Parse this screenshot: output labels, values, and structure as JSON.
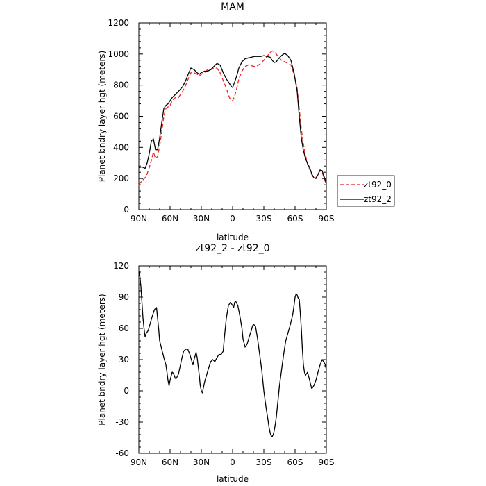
{
  "chart_data": [
    {
      "type": "line",
      "title": "MAM",
      "xlabel": "latitude",
      "ylabel": "Planet bndry layer hgt (meters)",
      "xlim": [
        90,
        -90
      ],
      "ylim": [
        0,
        1200
      ],
      "xticks": [
        90,
        60,
        30,
        0,
        -30,
        -60,
        -90
      ],
      "xtick_labels": [
        "90N",
        "60N",
        "30N",
        "0",
        "30S",
        "60S",
        "90S"
      ],
      "yticks": [
        0,
        200,
        400,
        600,
        800,
        1000,
        1200
      ],
      "ytick_labels": [
        "0",
        "200",
        "400",
        "600",
        "800",
        "1000",
        "1200"
      ],
      "legend_position": "right",
      "series": [
        {
          "name": "zt92_0",
          "color": "#e8231c",
          "dash": "dashed",
          "x": [
            90,
            87,
            84,
            82,
            80,
            78,
            76,
            74,
            72,
            70,
            68,
            66,
            64,
            62,
            60,
            58,
            55,
            52,
            48,
            45,
            42,
            40,
            37,
            34,
            32,
            30,
            27,
            24,
            21,
            18,
            15,
            12,
            9,
            6,
            3,
            1,
            0,
            -2,
            -4,
            -6,
            -9,
            -12,
            -15,
            -18,
            -21,
            -24,
            -27,
            -30,
            -33,
            -36,
            -38,
            -40,
            -42,
            -44,
            -47,
            -50,
            -53,
            -56,
            -59,
            -62,
            -64,
            -66,
            -68,
            -70,
            -72,
            -74,
            -76,
            -78,
            -80,
            -82,
            -84,
            -86,
            -88,
            -90
          ],
          "y": [
            160,
            185,
            205,
            230,
            270,
            315,
            370,
            330,
            340,
            410,
            500,
            600,
            650,
            660,
            670,
            700,
            720,
            720,
            760,
            800,
            850,
            880,
            880,
            870,
            860,
            870,
            880,
            900,
            900,
            910,
            910,
            880,
            830,
            780,
            720,
            700,
            700,
            730,
            780,
            840,
            890,
            920,
            930,
            925,
            920,
            925,
            940,
            960,
            985,
            1010,
            1020,
            1015,
            1000,
            980,
            960,
            950,
            940,
            930,
            870,
            780,
            650,
            520,
            420,
            350,
            290,
            260,
            225,
            205,
            205,
            230,
            250,
            240,
            200,
            160
          ]
        },
        {
          "name": "zt92_2",
          "color": "#000000",
          "dash": "solid",
          "x": [
            90,
            87,
            84,
            82,
            80,
            78,
            76,
            74,
            72,
            70,
            68,
            66,
            64,
            62,
            60,
            58,
            55,
            52,
            48,
            45,
            42,
            40,
            37,
            34,
            32,
            30,
            27,
            24,
            21,
            18,
            15,
            12,
            9,
            6,
            3,
            1,
            0,
            -2,
            -4,
            -6,
            -9,
            -12,
            -15,
            -18,
            -21,
            -24,
            -27,
            -30,
            -33,
            -36,
            -38,
            -40,
            -42,
            -44,
            -47,
            -50,
            -53,
            -56,
            -59,
            -62,
            -64,
            -66,
            -68,
            -70,
            -72,
            -74,
            -76,
            -78,
            -80,
            -82,
            -84,
            -86,
            -88,
            -90
          ],
          "y": [
            270,
            275,
            265,
            300,
            360,
            440,
            455,
            385,
            385,
            460,
            560,
            650,
            670,
            680,
            700,
            720,
            740,
            760,
            790,
            830,
            880,
            910,
            900,
            880,
            870,
            880,
            890,
            890,
            900,
            920,
            940,
            930,
            880,
            840,
            810,
            790,
            785,
            820,
            860,
            910,
            950,
            970,
            975,
            980,
            985,
            985,
            985,
            990,
            985,
            980,
            960,
            945,
            950,
            970,
            990,
            1005,
            990,
            960,
            880,
            760,
            600,
            460,
            380,
            330,
            295,
            270,
            230,
            205,
            200,
            225,
            255,
            250,
            210,
            170
          ]
        }
      ]
    },
    {
      "type": "line",
      "title": "zt92_2 - zt92_0",
      "xlabel": "latitude",
      "ylabel": "Planet bndry layer hgt (meters)",
      "xlim": [
        90,
        -90
      ],
      "ylim": [
        -60,
        120
      ],
      "xticks": [
        90,
        60,
        30,
        0,
        -30,
        -60,
        -90
      ],
      "xtick_labels": [
        "90N",
        "60N",
        "30N",
        "0",
        "30S",
        "60S",
        "90S"
      ],
      "yticks": [
        -60,
        -30,
        0,
        30,
        60,
        90,
        120
      ],
      "ytick_labels": [
        "-60",
        "-30",
        "0",
        "30",
        "60",
        "90",
        "120"
      ],
      "series": [
        {
          "color": "#000000",
          "dash": "solid",
          "x": [
            90,
            89,
            88,
            87,
            86,
            85,
            84,
            83,
            81,
            79,
            77,
            75,
            73,
            72,
            71,
            70,
            69,
            68,
            66,
            64,
            63,
            62,
            61,
            60,
            58,
            57,
            56,
            55,
            54,
            52,
            50,
            49,
            47,
            45,
            43,
            41,
            39,
            38,
            37,
            35,
            34,
            32,
            31,
            30,
            29,
            27,
            25,
            23,
            21,
            19,
            17,
            15,
            13,
            11,
            9,
            8,
            6,
            4,
            2,
            0,
            -1,
            -2,
            -3,
            -5,
            -7,
            -9,
            -10,
            -12,
            -14,
            -16,
            -18,
            -19,
            -20,
            -22,
            -24,
            -26,
            -28,
            -29,
            -30,
            -32,
            -34,
            -35,
            -36,
            -37,
            -38,
            -39,
            -40,
            -41,
            -42,
            -43,
            -44,
            -45,
            -47,
            -49,
            -51,
            -53,
            -55,
            -57,
            -58,
            -59,
            -60,
            -61,
            -62,
            -63,
            -64,
            -65,
            -66,
            -67,
            -68,
            -69,
            -70,
            -72,
            -74,
            -76,
            -78,
            -80,
            -82,
            -84,
            -86,
            -88,
            -89,
            -90
          ],
          "y": [
            115,
            110,
            100,
            85,
            70,
            60,
            52,
            55,
            58,
            65,
            72,
            78,
            80,
            70,
            60,
            48,
            44,
            40,
            32,
            25,
            18,
            10,
            5,
            10,
            18,
            17,
            15,
            12,
            12,
            16,
            25,
            30,
            38,
            40,
            40,
            35,
            28,
            25,
            30,
            37,
            32,
            15,
            5,
            0,
            -2,
            8,
            15,
            22,
            28,
            30,
            28,
            32,
            35,
            35,
            38,
            50,
            70,
            82,
            85,
            82,
            80,
            85,
            86,
            82,
            72,
            60,
            50,
            42,
            45,
            52,
            58,
            62,
            64,
            62,
            50,
            35,
            20,
            10,
            0,
            -15,
            -28,
            -35,
            -40,
            -43,
            -44,
            -42,
            -38,
            -32,
            -25,
            -15,
            -5,
            5,
            20,
            35,
            48,
            55,
            62,
            70,
            75,
            82,
            90,
            93,
            92,
            89,
            88,
            75,
            60,
            40,
            25,
            18,
            15,
            18,
            10,
            2,
            5,
            10,
            18,
            25,
            30,
            27,
            25,
            20
          ]
        }
      ]
    }
  ]
}
